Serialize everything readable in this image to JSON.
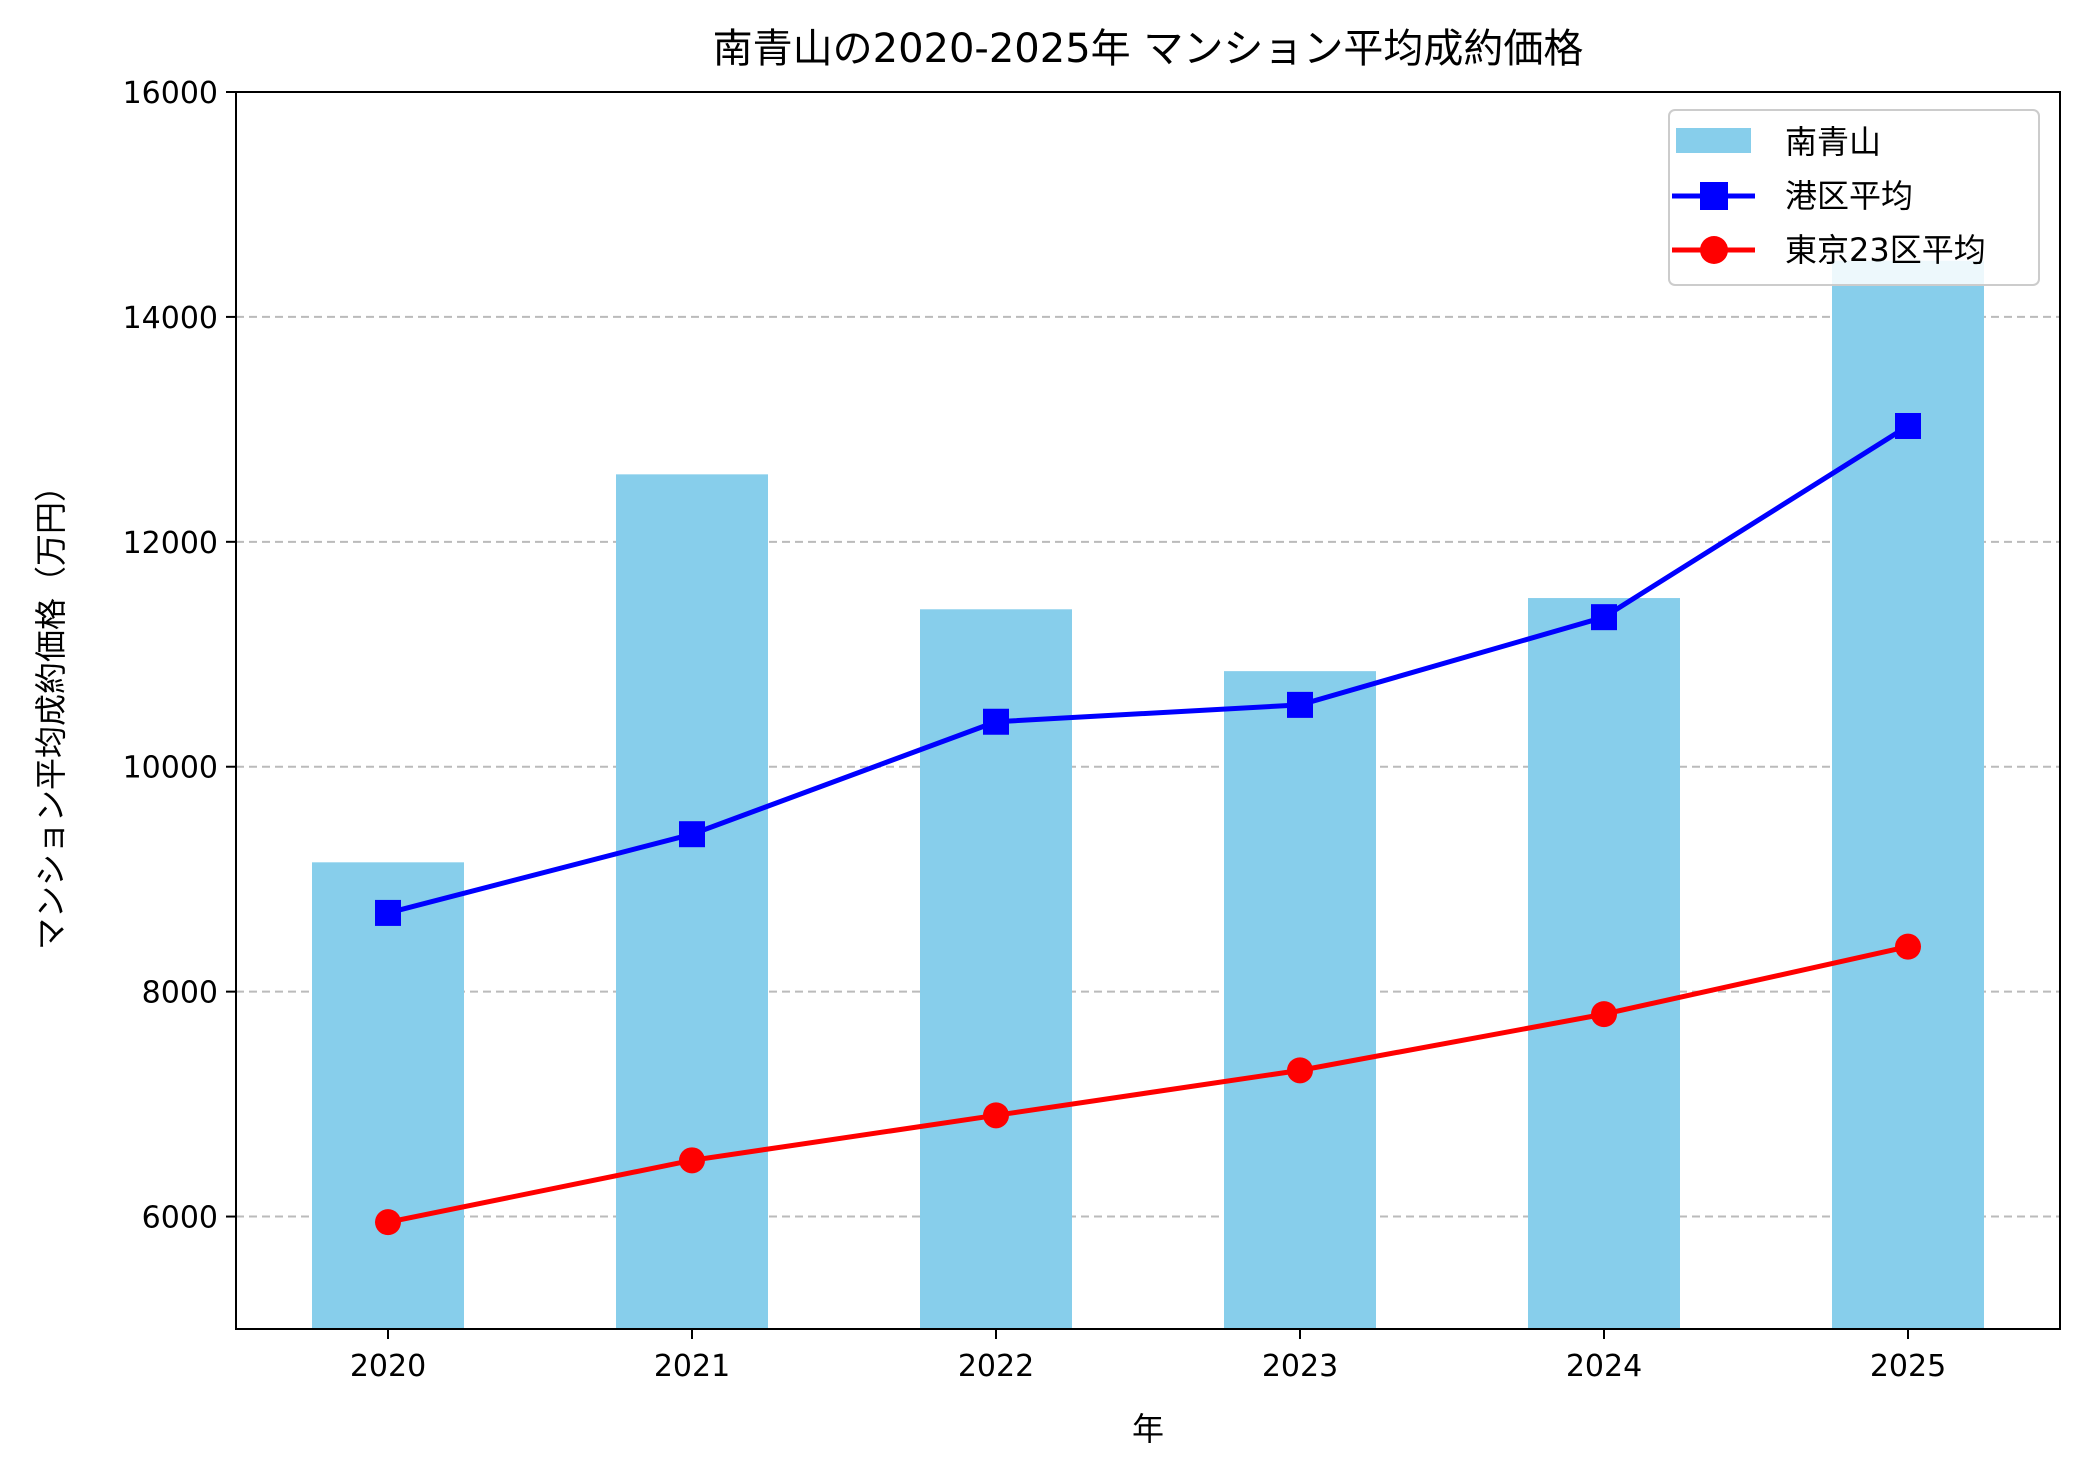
{
  "chart_data": {
    "type": "bar+line",
    "title": "南青山の2020-2025年 マンション平均成約価格",
    "xlabel": "年",
    "ylabel": "マンション平均成約価格（万円）",
    "categories": [
      "2020",
      "2021",
      "2022",
      "2023",
      "2024",
      "2025"
    ],
    "ylim": [
      5000,
      16000
    ],
    "yticks": [
      6000,
      8000,
      10000,
      12000,
      14000,
      16000
    ],
    "grid": "y dashed",
    "legend_placement": "top-right",
    "series": [
      {
        "name": "南青山",
        "type": "bar",
        "color": "#87CEEB",
        "values": [
          9150,
          12600,
          11400,
          10850,
          11500,
          14500
        ]
      },
      {
        "name": "港区平均",
        "type": "line",
        "marker": "square",
        "color": "#0000FF",
        "values": [
          8700,
          9400,
          10400,
          10550,
          11330,
          13030
        ]
      },
      {
        "name": "東京23区平均",
        "type": "line",
        "marker": "circle",
        "color": "#FF0000",
        "values": [
          5950,
          6500,
          6900,
          7300,
          7800,
          8400
        ]
      }
    ]
  }
}
